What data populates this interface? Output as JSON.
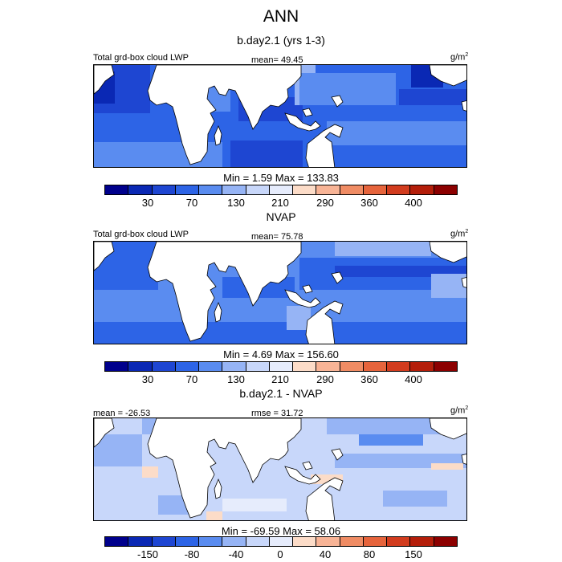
{
  "title": "ANN",
  "panels": [
    {
      "id": "panel-model",
      "subtitle": "b.day2.1 (yrs 1-3)",
      "left_label": "Total grd-box cloud LWP",
      "center_label": "mean=  49.45",
      "units_label": "g/m",
      "units_sup": "2",
      "minmax_text": "Min =   1.59 Max = 133.83",
      "colorbar_labels": [
        "30",
        "70",
        "130",
        "210",
        "290",
        "360",
        "400"
      ]
    },
    {
      "id": "panel-obs",
      "subtitle": "NVAP",
      "left_label": "Total grd-box cloud LWP",
      "center_label": "mean=  75.78",
      "units_label": "g/m",
      "units_sup": "2",
      "minmax_text": "Min =   4.69 Max = 156.60",
      "colorbar_labels": [
        "30",
        "70",
        "130",
        "210",
        "290",
        "360",
        "400"
      ]
    },
    {
      "id": "panel-diff",
      "subtitle": "b.day2.1 - NVAP",
      "left_label": "mean = -26.53",
      "center_label": "rmse =  31.72",
      "units_label": "g/m",
      "units_sup": "2",
      "minmax_text": "Min = -69.59 Max =  58.06",
      "colorbar_labels": [
        "-150",
        "-80",
        "-40",
        "0",
        "40",
        "80",
        "150"
      ]
    }
  ],
  "colorbar_colors": [
    "#00008c",
    "#0a28b4",
    "#1e46d2",
    "#2d64e6",
    "#5a8cf0",
    "#96b4f5",
    "#c8d7fa",
    "#e6ecfc",
    "#fcdcc8",
    "#f8b496",
    "#f08c64",
    "#e6643c",
    "#d23c1e",
    "#b41e0a",
    "#8c0000"
  ],
  "chart_data": [
    {
      "type": "heatmap",
      "title": "b.day2.1 (yrs 1-3)",
      "variable": "Total grd-box cloud LWP",
      "units": "g/m2",
      "mean": 49.45,
      "min": 1.59,
      "max": 133.83,
      "colorbar_ticks": [
        30,
        70,
        130,
        210,
        290,
        360,
        400
      ]
    },
    {
      "type": "heatmap",
      "title": "NVAP",
      "variable": "Total grd-box cloud LWP",
      "units": "g/m2",
      "mean": 75.78,
      "min": 4.69,
      "max": 156.6,
      "colorbar_ticks": [
        30,
        70,
        130,
        210,
        290,
        360,
        400
      ]
    },
    {
      "type": "heatmap",
      "title": "b.day2.1 - NVAP",
      "units": "g/m2",
      "mean": -26.53,
      "rmse": 31.72,
      "min": -69.59,
      "max": 58.06,
      "colorbar_ticks": [
        -150,
        -80,
        -40,
        0,
        40,
        80,
        150
      ]
    }
  ]
}
